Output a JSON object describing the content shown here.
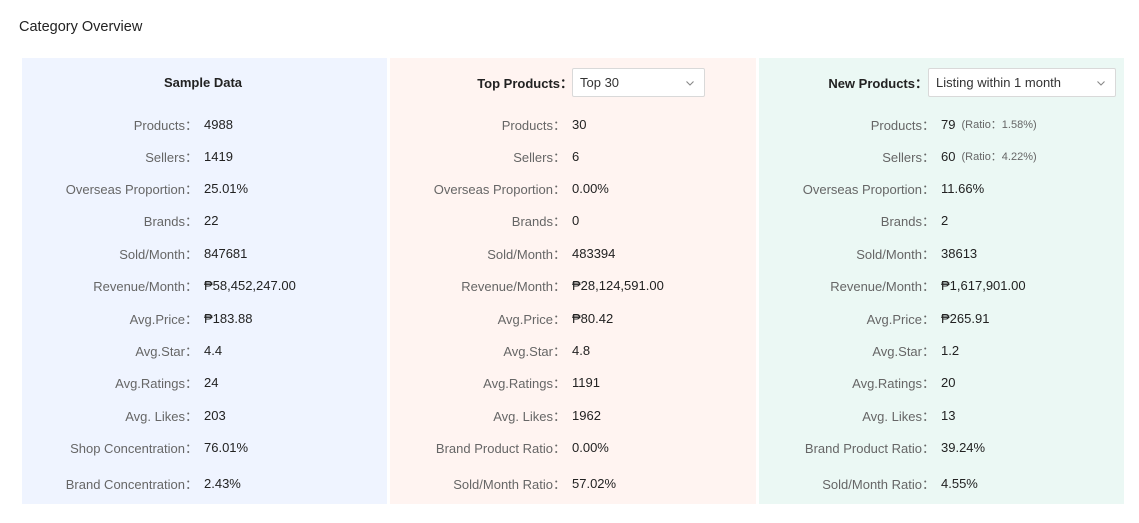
{
  "page_title": "Category Overview",
  "panels": {
    "sample": {
      "title": "Sample Data",
      "rows": [
        {
          "label": "Products：",
          "value": "4988"
        },
        {
          "label": "Sellers：",
          "value": "1419"
        },
        {
          "label": "Overseas Proportion：",
          "value": "25.01%"
        },
        {
          "label": "Brands：",
          "value": "22"
        },
        {
          "label": "Sold/Month：",
          "value": "847681"
        },
        {
          "label": "Revenue/Month：",
          "value": "₱58,452,247.00"
        },
        {
          "label": "Avg.Price：",
          "value": "₱183.88"
        },
        {
          "label": "Avg.Star：",
          "value": "4.4"
        },
        {
          "label": "Avg.Ratings：",
          "value": "24"
        },
        {
          "label": "Avg. Likes：",
          "value": "203"
        },
        {
          "label": "Shop Concentration：",
          "value": "76.01%"
        },
        {
          "label": "Brand Concentration：",
          "value": "2.43%"
        }
      ]
    },
    "top": {
      "label": "Top Products：",
      "select_value": "Top 30",
      "rows": [
        {
          "label": "Products：",
          "value": "30"
        },
        {
          "label": "Sellers：",
          "value": "6"
        },
        {
          "label": "Overseas Proportion：",
          "value": "0.00%"
        },
        {
          "label": "Brands：",
          "value": "0"
        },
        {
          "label": "Sold/Month：",
          "value": "483394"
        },
        {
          "label": "Revenue/Month：",
          "value": "₱28,124,591.00"
        },
        {
          "label": "Avg.Price：",
          "value": "₱80.42"
        },
        {
          "label": "Avg.Star：",
          "value": "4.8"
        },
        {
          "label": "Avg.Ratings：",
          "value": "1191"
        },
        {
          "label": "Avg. Likes：",
          "value": "1962"
        },
        {
          "label": "Brand Product Ratio：",
          "value": "0.00%"
        },
        {
          "label": "Sold/Month Ratio：",
          "value": "57.02%"
        }
      ]
    },
    "new": {
      "label": "New Products：",
      "select_value": "Listing within 1 month",
      "rows": [
        {
          "label": "Products：",
          "value": "79",
          "ratio": "(Ratio：1.58%)"
        },
        {
          "label": "Sellers：",
          "value": "60",
          "ratio": "(Ratio：4.22%)"
        },
        {
          "label": "Overseas Proportion：",
          "value": "11.66%"
        },
        {
          "label": "Brands：",
          "value": "2"
        },
        {
          "label": "Sold/Month：",
          "value": "38613"
        },
        {
          "label": "Revenue/Month：",
          "value": "₱1,617,901.00"
        },
        {
          "label": "Avg.Price：",
          "value": "₱265.91"
        },
        {
          "label": "Avg.Star：",
          "value": "1.2"
        },
        {
          "label": "Avg.Ratings：",
          "value": "20"
        },
        {
          "label": "Avg. Likes：",
          "value": "13"
        },
        {
          "label": "Brand Product Ratio：",
          "value": "39.24%"
        },
        {
          "label": "Sold/Month Ratio：",
          "value": "4.55%"
        }
      ]
    }
  },
  "icons": {
    "select_chevron": "chevron-down-icon"
  },
  "colors": {
    "sample_bg": "#eff4ff",
    "top_bg": "#fff4f1",
    "new_bg": "#ebf8f4"
  }
}
